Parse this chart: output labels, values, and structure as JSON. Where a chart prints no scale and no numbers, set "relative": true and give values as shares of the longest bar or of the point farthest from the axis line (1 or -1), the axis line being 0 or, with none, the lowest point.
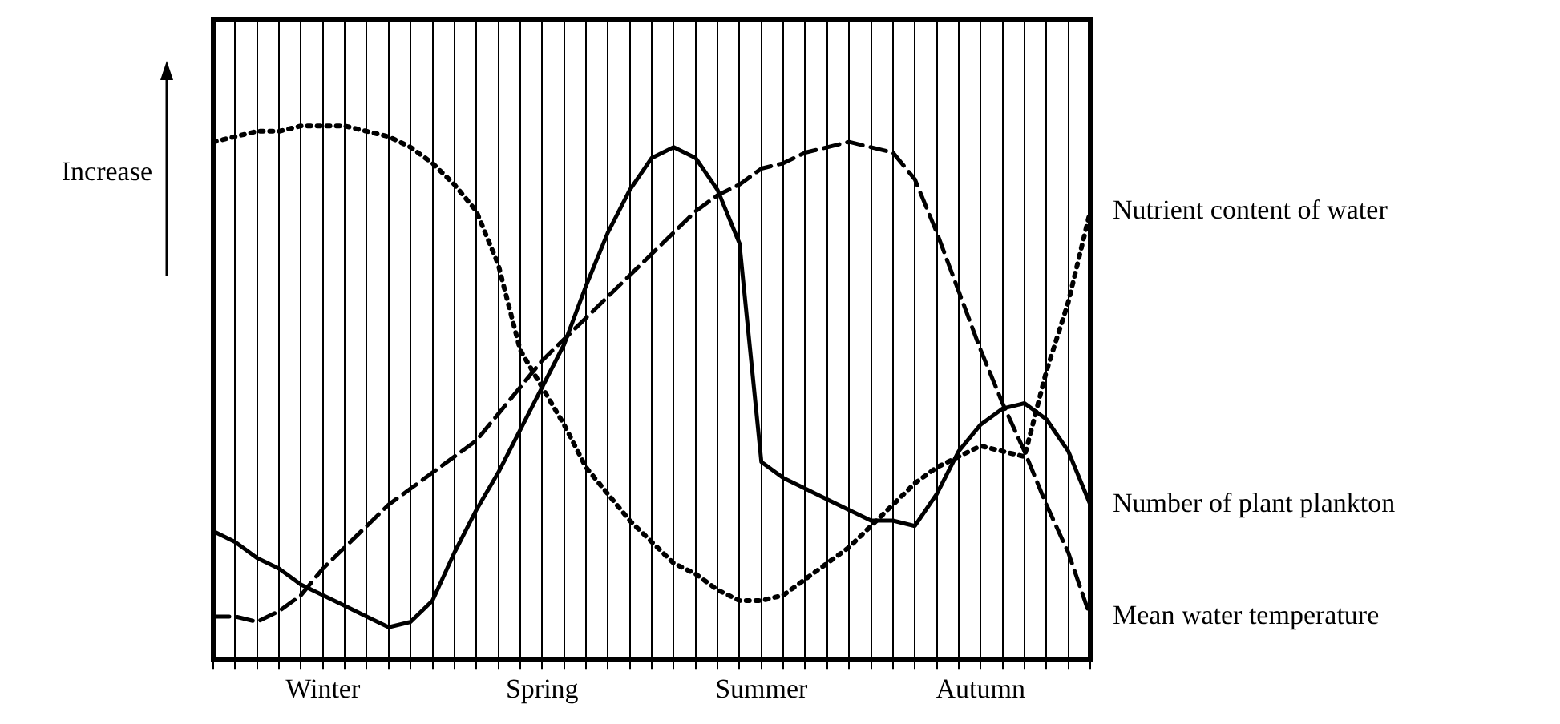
{
  "chart_data": {
    "type": "line",
    "relative": true,
    "ylabel": "Increase",
    "categories": [
      null,
      null,
      null,
      null,
      null,
      "Winter",
      null,
      null,
      null,
      null,
      null,
      null,
      null,
      null,
      null,
      "Spring",
      null,
      null,
      null,
      null,
      null,
      null,
      null,
      null,
      null,
      "Summer",
      null,
      null,
      null,
      null,
      null,
      null,
      null,
      null,
      null,
      "Autumn",
      null,
      null,
      null,
      null,
      null
    ],
    "grid": "x",
    "legend": false,
    "marker": "none",
    "series": [
      {
        "name": "Nutrient content of water",
        "color": "#000000",
        "line_style": "dotted",
        "values": [
          0.97,
          0.98,
          0.99,
          0.99,
          1.0,
          1.0,
          1.0,
          0.99,
          0.98,
          0.96,
          0.93,
          0.89,
          0.84,
          0.74,
          0.58,
          0.51,
          0.44,
          0.36,
          0.31,
          0.26,
          0.22,
          0.18,
          0.16,
          0.13,
          0.11,
          0.11,
          0.12,
          0.15,
          0.18,
          0.21,
          0.25,
          0.29,
          0.33,
          0.36,
          0.38,
          0.4,
          0.39,
          0.38,
          0.54,
          0.67,
          0.84
        ]
      },
      {
        "name": "Number of plant plankton",
        "color": "#000000",
        "line_style": "solid",
        "values": [
          0.24,
          0.22,
          0.19,
          0.17,
          0.14,
          0.12,
          0.1,
          0.08,
          0.06,
          0.07,
          0.11,
          0.2,
          0.28,
          0.35,
          0.43,
          0.51,
          0.59,
          0.7,
          0.8,
          0.88,
          0.94,
          0.96,
          0.94,
          0.88,
          0.78,
          0.37,
          0.34,
          0.32,
          0.3,
          0.28,
          0.26,
          0.26,
          0.25,
          0.31,
          0.39,
          0.44,
          0.47,
          0.48,
          0.45,
          0.39,
          0.29
        ]
      },
      {
        "name": "Mean water temperature",
        "color": "#000000",
        "line_style": "dashed",
        "values": [
          0.08,
          0.08,
          0.07,
          0.09,
          0.12,
          0.17,
          0.21,
          0.25,
          0.29,
          0.32,
          0.35,
          0.38,
          0.41,
          0.46,
          0.51,
          0.56,
          0.6,
          0.64,
          0.68,
          0.72,
          0.76,
          0.8,
          0.84,
          0.87,
          0.89,
          0.92,
          0.93,
          0.95,
          0.96,
          0.97,
          0.96,
          0.95,
          0.9,
          0.8,
          0.69,
          0.58,
          0.48,
          0.39,
          0.29,
          0.2,
          0.08
        ]
      }
    ]
  }
}
